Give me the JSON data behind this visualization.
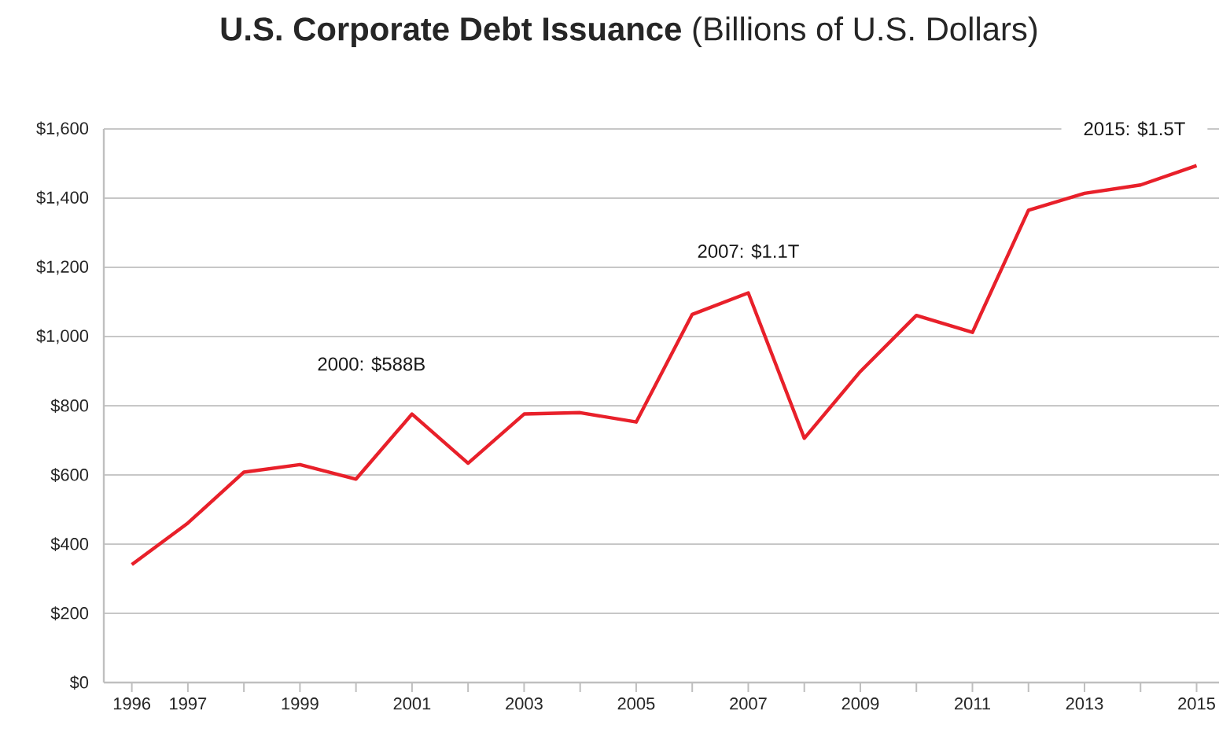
{
  "chart_data": {
    "type": "line",
    "title": "**U.S. Corporate Debt Issuance** (Billions of U.S. Dollars)",
    "x": [
      1996,
      1997,
      1998,
      1999,
      2000,
      2001,
      2002,
      2003,
      2004,
      2005,
      2006,
      2007,
      2008,
      2009,
      2010,
      2011,
      2012,
      2013,
      2014,
      2015
    ],
    "series": [
      {
        "color": "#e8202a",
        "values": [
          341,
          461,
          608,
          630,
          588,
          776,
          634,
          776,
          780,
          753,
          1064,
          1126,
          706,
          899,
          1061,
          1012,
          1365,
          1414,
          1438,
          1494
        ]
      }
    ],
    "xlim": [
      1995.5,
      2015.4
    ],
    "xticks": [
      1996,
      1997,
      {
        "value": 1998,
        "label": null
      },
      1999,
      {
        "value": 2000,
        "label": null
      },
      2001,
      {
        "value": 2002,
        "label": null
      },
      2003,
      {
        "value": 2004,
        "label": null
      },
      2005,
      {
        "value": 2006,
        "label": null
      },
      2007,
      {
        "value": 2008,
        "label": null
      },
      2009,
      {
        "value": 2010,
        "label": null
      },
      2011,
      {
        "value": 2012,
        "label": null
      },
      2013,
      {
        "value": 2014,
        "label": null
      },
      2015
    ],
    "ylim": [
      0,
      1600
    ],
    "yticks": [
      {
        "value": 0,
        "label": "$0"
      },
      {
        "value": 200,
        "label": "$200"
      },
      {
        "value": 400,
        "label": "$400"
      },
      {
        "value": 600,
        "label": "$600"
      },
      {
        "value": 800,
        "label": "$800"
      },
      {
        "value": 1000,
        "label": "$1,000"
      },
      {
        "value": 1200,
        "label": "$1,200"
      },
      {
        "value": 1400,
        "label": "$1,400"
      },
      {
        "value": 1600,
        "label": "$1,600"
      }
    ],
    "grid": "y",
    "annotations": [
      "2000: $588B",
      {
        "text": "2007: $1.1T",
        "x": 2007,
        "y": 1126
      },
      {
        "text": "2015: $1.5T",
        "x": 2015,
        "y": 1494
      }
    ]
  }
}
